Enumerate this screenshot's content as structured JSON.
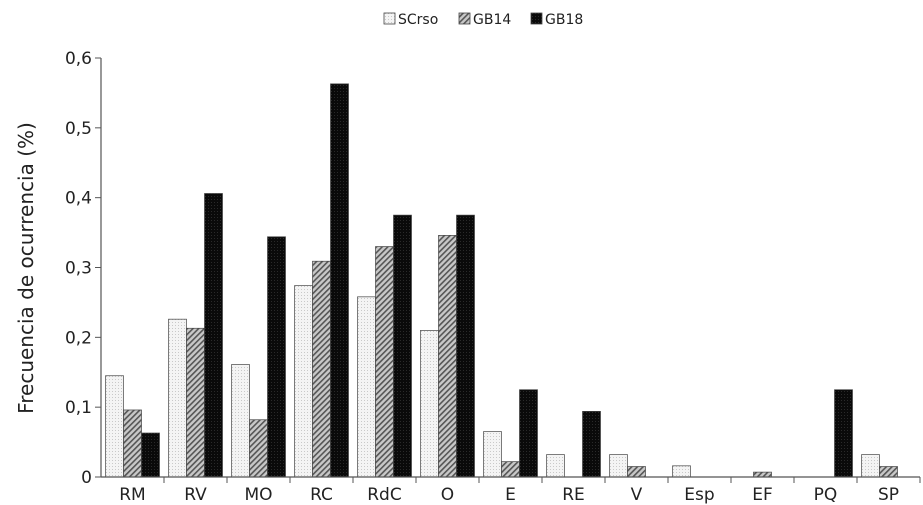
{
  "chart_data": {
    "type": "bar",
    "title": "",
    "xlabel": "",
    "ylabel": "Frecuencia de ocurrencia (%)",
    "ylim": [
      0,
      0.6
    ],
    "yticks": [
      "0",
      "0,1",
      "0,2",
      "0,3",
      "0,4",
      "0,5",
      "0,6"
    ],
    "ytick_values": [
      0,
      0.1,
      0.2,
      0.3,
      0.4,
      0.5,
      0.6
    ],
    "grid": false,
    "legend_position": "top-center",
    "categories": [
      "RM",
      "RV",
      "MO",
      "RC",
      "RdC",
      "O",
      "E",
      "RE",
      "V",
      "Esp",
      "EF",
      "PQ",
      "SP"
    ],
    "series": [
      {
        "name": "SCrso",
        "fill": "light-dotted",
        "values": [
          0.145,
          0.226,
          0.161,
          0.274,
          0.258,
          0.21,
          0.065,
          0.032,
          0.032,
          0.016,
          0,
          0,
          0.032
        ]
      },
      {
        "name": "GB14",
        "fill": "diagonal-hatch",
        "values": [
          0.096,
          0.213,
          0.082,
          0.309,
          0.33,
          0.346,
          0.022,
          0,
          0.015,
          0,
          0.007,
          0,
          0.015
        ]
      },
      {
        "name": "GB18",
        "fill": "black",
        "values": [
          0.063,
          0.406,
          0.344,
          0.563,
          0.375,
          0.375,
          0.125,
          0.094,
          0,
          0,
          0,
          0.125,
          0
        ]
      }
    ]
  }
}
